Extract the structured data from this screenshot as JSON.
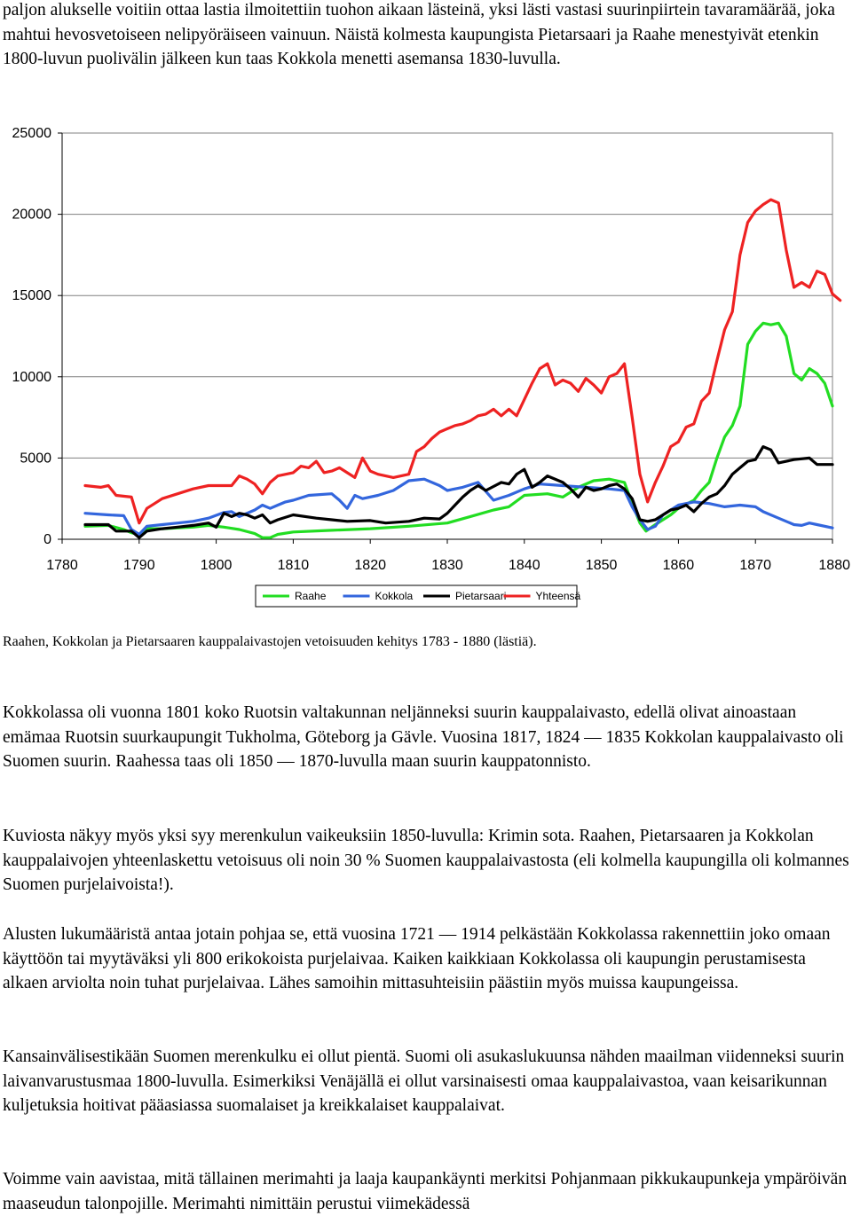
{
  "text": {
    "intro": "paljon alukselle voitiin ottaa lastia ilmoitettiin tuohon aikaan lästeinä, yksi lästi vastasi suurinpiirtein tavaramäärää, joka mahtui hevosvetoiseen nelipyöräiseen vainuun. Näistä kolmesta kaupungista Pietarsaari ja Raahe menestyivät etenkin 1800-luvun puolivälin jälkeen kun taas Kokkola menetti asemansa 1830-luvulla.",
    "caption": "Raahen, Kokkolan ja Pietarsaaren kauppalaivastojen vetoisuuden kehitys 1783 - 1880 (lästiä).",
    "p2": "Kokkolassa oli vuonna 1801 koko Ruotsin valtakunnan neljänneksi suurin kauppalaivasto, edellä olivat ainoastaan emämaa Ruotsin suurkaupungit Tukholma, Göteborg ja Gävle. Vuosina 1817, 1824 — 1835 Kokkolan kauppalaivasto oli Suomen suurin. Raahessa taas oli 1850 — 1870-luvulla maan suurin kauppatonnisto.",
    "p3": "Kuviosta näkyy myös yksi syy merenkulun vaikeuksiin 1850-luvulla: Krimin sota. Raahen, Pietarsaaren ja Kokkolan kauppalaivojen yhteenlaskettu vetoisuus oli noin 30 % Suomen kauppalaivastosta (eli kolmella kaupungilla oli kolmannes Suomen purjelaivoista!).",
    "p4": "Alusten lukumääristä antaa jotain pohjaa se, että vuosina 1721 — 1914 pelkästään Kokkolassa rakennettiin joko omaan käyttöön tai myytäväksi yli 800 erikokoista purjelaivaa. Kaiken kaikkiaan Kokkolassa oli kaupungin perustamisesta alkaen arviolta noin tuhat purjelaivaa. Lähes samoihin mittasuhteisiin päästiin myös muissa kaupungeissa.",
    "p5": "Kansainvälisestikään Suomen merenkulku ei ollut pientä. Suomi oli asukaslukuunsa nähden maailman viidenneksi suurin laivanvarustusmaa 1800-luvulla. Esimerkiksi Venäjällä ei ollut varsinaisesti omaa kauppalaivastoa, vaan keisarikunnan kuljetuksia hoitivat pääasiassa suomalaiset ja kreikkalaiset kauppalaivat.",
    "p6": "Voimme vain aavistaa, mitä tällainen merimahti ja laaja kaupankäynti merkitsi Pohjanmaan pikkukaupunkeja ympäröivän maaseudun talonpojille. Merimahti nimittäin perustui viimekädessä"
  },
  "chart_data": {
    "type": "line",
    "xlim": [
      1780,
      1880
    ],
    "ylim": [
      0,
      25000
    ],
    "x_ticks": [
      "1780",
      "1790",
      "1800",
      "1810",
      "1820",
      "1830",
      "1840",
      "1850",
      "1860",
      "1870",
      "1880"
    ],
    "y_ticks": [
      "0",
      "5000",
      "10000",
      "15000",
      "20000",
      "25000"
    ],
    "grid": "horizontal",
    "legend_position": "bottom",
    "series": [
      {
        "name": "Raahe",
        "color": "#22dd22",
        "points": [
          [
            1783,
            800
          ],
          [
            1786,
            850
          ],
          [
            1788,
            600
          ],
          [
            1789,
            400
          ],
          [
            1790,
            300
          ],
          [
            1791,
            650
          ],
          [
            1793,
            650
          ],
          [
            1795,
            700
          ],
          [
            1797,
            750
          ],
          [
            1799,
            850
          ],
          [
            1801,
            750
          ],
          [
            1803,
            600
          ],
          [
            1805,
            350
          ],
          [
            1806,
            100
          ],
          [
            1807,
            100
          ],
          [
            1808,
            300
          ],
          [
            1810,
            450
          ],
          [
            1815,
            550
          ],
          [
            1820,
            650
          ],
          [
            1825,
            800
          ],
          [
            1830,
            1000
          ],
          [
            1833,
            1400
          ],
          [
            1836,
            1800
          ],
          [
            1838,
            2000
          ],
          [
            1840,
            2700
          ],
          [
            1843,
            2800
          ],
          [
            1845,
            2600
          ],
          [
            1847,
            3200
          ],
          [
            1849,
            3600
          ],
          [
            1851,
            3700
          ],
          [
            1853,
            3500
          ],
          [
            1854,
            2200
          ],
          [
            1855,
            1000
          ],
          [
            1855.8,
            500
          ],
          [
            1857,
            900
          ],
          [
            1858,
            1200
          ],
          [
            1859,
            1500
          ],
          [
            1860,
            1900
          ],
          [
            1862,
            2400
          ],
          [
            1863,
            3000
          ],
          [
            1864,
            3500
          ],
          [
            1865,
            5000
          ],
          [
            1866,
            6300
          ],
          [
            1867,
            7000
          ],
          [
            1868,
            8200
          ],
          [
            1869,
            12000
          ],
          [
            1870,
            12800
          ],
          [
            1871,
            13300
          ],
          [
            1872,
            13200
          ],
          [
            1873,
            13300
          ],
          [
            1874,
            12500
          ],
          [
            1875,
            10200
          ],
          [
            1876,
            9800
          ],
          [
            1877,
            10500
          ],
          [
            1878,
            10200
          ],
          [
            1879,
            9600
          ],
          [
            1880,
            8200
          ]
        ]
      },
      {
        "name": "Kokkola",
        "color": "#3366dd",
        "points": [
          [
            1783,
            1600
          ],
          [
            1786,
            1500
          ],
          [
            1788,
            1450
          ],
          [
            1789,
            600
          ],
          [
            1790,
            300
          ],
          [
            1791,
            800
          ],
          [
            1793,
            900
          ],
          [
            1795,
            1000
          ],
          [
            1797,
            1100
          ],
          [
            1799,
            1300
          ],
          [
            1801,
            1650
          ],
          [
            1802,
            1700
          ],
          [
            1803,
            1400
          ],
          [
            1804,
            1600
          ],
          [
            1805,
            1800
          ],
          [
            1806,
            2100
          ],
          [
            1807,
            1900
          ],
          [
            1808,
            2100
          ],
          [
            1809,
            2300
          ],
          [
            1810,
            2400
          ],
          [
            1812,
            2700
          ],
          [
            1815,
            2800
          ],
          [
            1816,
            2400
          ],
          [
            1817,
            1900
          ],
          [
            1818,
            2700
          ],
          [
            1819,
            2500
          ],
          [
            1821,
            2700
          ],
          [
            1823,
            3000
          ],
          [
            1825,
            3600
          ],
          [
            1827,
            3700
          ],
          [
            1829,
            3300
          ],
          [
            1830,
            3000
          ],
          [
            1832,
            3200
          ],
          [
            1834,
            3500
          ],
          [
            1836,
            2400
          ],
          [
            1838,
            2700
          ],
          [
            1840,
            3100
          ],
          [
            1842,
            3400
          ],
          [
            1845,
            3300
          ],
          [
            1848,
            3200
          ],
          [
            1851,
            3100
          ],
          [
            1853,
            3000
          ],
          [
            1854,
            2000
          ],
          [
            1855,
            1200
          ],
          [
            1856,
            600
          ],
          [
            1857,
            800
          ],
          [
            1858,
            1500
          ],
          [
            1860,
            2100
          ],
          [
            1862,
            2300
          ],
          [
            1864,
            2200
          ],
          [
            1866,
            2000
          ],
          [
            1868,
            2100
          ],
          [
            1870,
            2000
          ],
          [
            1871,
            1700
          ],
          [
            1873,
            1300
          ],
          [
            1875,
            900
          ],
          [
            1876,
            850
          ],
          [
            1877,
            1000
          ],
          [
            1878,
            900
          ],
          [
            1880,
            700
          ]
        ]
      },
      {
        "name": "Pietarsaari",
        "color": "#000000",
        "points": [
          [
            1783,
            900
          ],
          [
            1786,
            900
          ],
          [
            1787,
            500
          ],
          [
            1789,
            500
          ],
          [
            1790,
            100
          ],
          [
            1791,
            500
          ],
          [
            1793,
            650
          ],
          [
            1795,
            750
          ],
          [
            1797,
            850
          ],
          [
            1799,
            1000
          ],
          [
            1800,
            750
          ],
          [
            1801,
            1600
          ],
          [
            1802,
            1400
          ],
          [
            1803,
            1600
          ],
          [
            1804,
            1500
          ],
          [
            1805,
            1300
          ],
          [
            1806,
            1500
          ],
          [
            1807,
            1000
          ],
          [
            1808,
            1200
          ],
          [
            1810,
            1500
          ],
          [
            1813,
            1300
          ],
          [
            1815,
            1200
          ],
          [
            1817,
            1100
          ],
          [
            1820,
            1150
          ],
          [
            1822,
            1000
          ],
          [
            1825,
            1100
          ],
          [
            1827,
            1300
          ],
          [
            1829,
            1250
          ],
          [
            1830,
            1600
          ],
          [
            1831,
            2100
          ],
          [
            1832,
            2600
          ],
          [
            1833,
            3000
          ],
          [
            1834,
            3300
          ],
          [
            1835,
            3000
          ],
          [
            1837,
            3500
          ],
          [
            1838,
            3400
          ],
          [
            1839,
            4000
          ],
          [
            1840,
            4300
          ],
          [
            1841,
            3200
          ],
          [
            1842,
            3500
          ],
          [
            1843,
            3900
          ],
          [
            1845,
            3500
          ],
          [
            1846,
            3100
          ],
          [
            1847,
            2600
          ],
          [
            1848,
            3200
          ],
          [
            1849,
            3000
          ],
          [
            1850,
            3100
          ],
          [
            1851,
            3300
          ],
          [
            1852,
            3400
          ],
          [
            1853,
            3100
          ],
          [
            1854,
            2500
          ],
          [
            1855,
            1200
          ],
          [
            1856,
            1100
          ],
          [
            1857,
            1200
          ],
          [
            1858,
            1500
          ],
          [
            1859,
            1800
          ],
          [
            1860,
            1900
          ],
          [
            1861,
            2100
          ],
          [
            1862,
            1700
          ],
          [
            1863,
            2200
          ],
          [
            1864,
            2600
          ],
          [
            1865,
            2800
          ],
          [
            1866,
            3300
          ],
          [
            1867,
            4000
          ],
          [
            1868,
            4400
          ],
          [
            1869,
            4800
          ],
          [
            1870,
            4900
          ],
          [
            1871,
            5700
          ],
          [
            1872,
            5500
          ],
          [
            1873,
            4700
          ],
          [
            1875,
            4900
          ],
          [
            1877,
            5000
          ],
          [
            1878,
            4600
          ],
          [
            1880,
            4600
          ]
        ]
      },
      {
        "name": "Yhteensä",
        "color": "#ee2222",
        "points": [
          [
            1783,
            3300
          ],
          [
            1785,
            3200
          ],
          [
            1786,
            3300
          ],
          [
            1787,
            2700
          ],
          [
            1789,
            2600
          ],
          [
            1790,
            1000
          ],
          [
            1791,
            1900
          ],
          [
            1792,
            2200
          ],
          [
            1793,
            2500
          ],
          [
            1795,
            2800
          ],
          [
            1797,
            3100
          ],
          [
            1799,
            3300
          ],
          [
            1801,
            3300
          ],
          [
            1802,
            3300
          ],
          [
            1803,
            3900
          ],
          [
            1804,
            3700
          ],
          [
            1805,
            3400
          ],
          [
            1806,
            2800
          ],
          [
            1807,
            3500
          ],
          [
            1808,
            3900
          ],
          [
            1810,
            4100
          ],
          [
            1811,
            4500
          ],
          [
            1812,
            4400
          ],
          [
            1813,
            4800
          ],
          [
            1814,
            4100
          ],
          [
            1815,
            4200
          ],
          [
            1816,
            4400
          ],
          [
            1818,
            3800
          ],
          [
            1819,
            5000
          ],
          [
            1820,
            4200
          ],
          [
            1821,
            4000
          ],
          [
            1823,
            3800
          ],
          [
            1825,
            4000
          ],
          [
            1826,
            5400
          ],
          [
            1827,
            5700
          ],
          [
            1828,
            6200
          ],
          [
            1829,
            6600
          ],
          [
            1830,
            6800
          ],
          [
            1831,
            7000
          ],
          [
            1832,
            7100
          ],
          [
            1833,
            7300
          ],
          [
            1834,
            7600
          ],
          [
            1835,
            7700
          ],
          [
            1836,
            8000
          ],
          [
            1837,
            7600
          ],
          [
            1838,
            8000
          ],
          [
            1839,
            7600
          ],
          [
            1840,
            8600
          ],
          [
            1841,
            9600
          ],
          [
            1842,
            10500
          ],
          [
            1843,
            10800
          ],
          [
            1844,
            9500
          ],
          [
            1845,
            9800
          ],
          [
            1846,
            9600
          ],
          [
            1847,
            9100
          ],
          [
            1848,
            9900
          ],
          [
            1849,
            9500
          ],
          [
            1850,
            9000
          ],
          [
            1851,
            10000
          ],
          [
            1852,
            10200
          ],
          [
            1853,
            10800
          ],
          [
            1854,
            7500
          ],
          [
            1855,
            4000
          ],
          [
            1856,
            2300
          ],
          [
            1857,
            3500
          ],
          [
            1858,
            4500
          ],
          [
            1859,
            5700
          ],
          [
            1860,
            6000
          ],
          [
            1861,
            6900
          ],
          [
            1862,
            7100
          ],
          [
            1863,
            8500
          ],
          [
            1864,
            9000
          ],
          [
            1865,
            11000
          ],
          [
            1866,
            12900
          ],
          [
            1867,
            14000
          ],
          [
            1868,
            17500
          ],
          [
            1869,
            19500
          ],
          [
            1870,
            20200
          ],
          [
            1871,
            20600
          ],
          [
            1872,
            20900
          ],
          [
            1873,
            20700
          ],
          [
            1874,
            17800
          ],
          [
            1875,
            15500
          ],
          [
            1876,
            15800
          ],
          [
            1877,
            15500
          ],
          [
            1878,
            16500
          ],
          [
            1879,
            16300
          ],
          [
            1880,
            15100
          ],
          [
            1881,
            14700
          ]
        ]
      }
    ]
  }
}
